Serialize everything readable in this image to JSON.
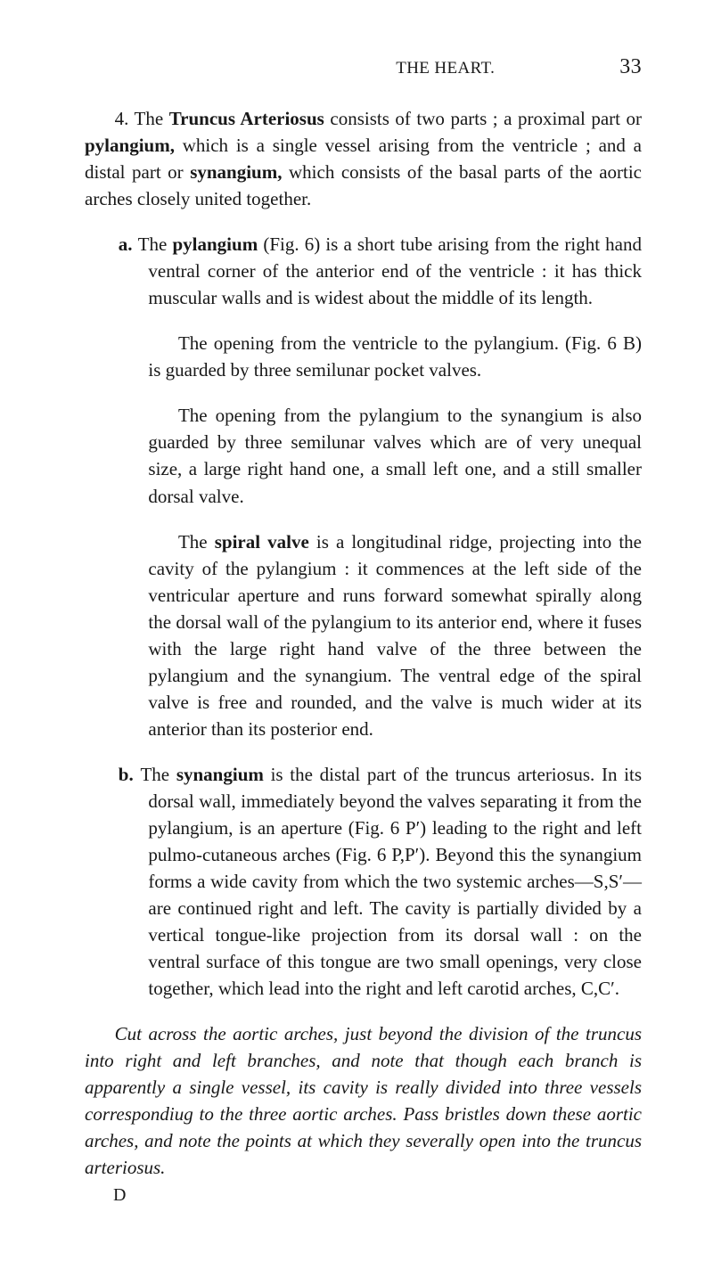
{
  "colors": {
    "background": "#ffffff",
    "text": "#181818"
  },
  "typography": {
    "body_font": "Georgia / Times New Roman serif",
    "body_size_pt": 16,
    "line_height": 1.43
  },
  "header": {
    "running_title": "THE HEART.",
    "page_number": "33"
  },
  "body": {
    "intro_num": "4. ",
    "intro_a": "The ",
    "intro_b": "Truncus Arteriosus",
    "intro_c": " consists of two parts ; a proximal part or ",
    "intro_d": "pylangium,",
    "intro_e": " which is a single vessel arising from the ventricle ; and a distal part or ",
    "intro_f": "synangium,",
    "intro_g": " which consists of the basal parts of the aortic arches closely united together.",
    "a_num": "a. ",
    "a_1a": "The ",
    "a_1b": "pylangium",
    "a_1c": " (Fig. 6) is a short tube arising from the right hand ventral corner of the anterior end of the ventricle : it has thick muscular walls and is widest about the middle of its length.",
    "a_2": "The opening from the ventricle to the pylangium. (Fig. 6 B) is guarded by three semilunar pocket valves.",
    "a_3": "The opening from the pylangium to the synangium is also guarded by three semilunar valves which are of very unequal size, a large right hand one, a small left one, and a still smaller dorsal valve.",
    "a_4a": "The ",
    "a_4b": "spiral valve",
    "a_4c": " is a longitudinal ridge, projecting into the cavity of the pylangium : it commences at the left side of the ventricular aperture and runs forward somewhat spirally along the dorsal wall of the pylangium to its anterior end, where it fuses with the large right hand valve of the three between the pylangium and the synangium. The ventral edge of the spiral valve is free and rounded, and the valve is much wider at its anterior than its posterior end.",
    "b_num": "b. ",
    "b_1a": "The ",
    "b_1b": "synangium",
    "b_1c": " is the distal part of the truncus arteriosus. In its dorsal wall, immediately beyond the valves separating it from the pylangium, is an aperture (Fig. 6 P′) leading to the right and left pulmo-cutaneous arches (Fig. 6 P,P′). Beyond this the synangium forms a wide cavity from which the two systemic arches—S,S′—are continued right and left. The cavity is partially divided by a vertical tongue-like projection from its dorsal wall : on the ventral surface of this tongue are two small openings, very close together, which lead into the right and left carotid arches, C,C′.",
    "closing": "Cut across the aortic arches, just beyond the division of the truncus into right and left branches, and note that though each branch is apparently a single vessel, its cavity is really divided into three vessels correspondiug to the three aortic arches. Pass bristles down these aortic arches, and note the points at which they severally open into the truncus arteriosus.",
    "sig": "D"
  }
}
